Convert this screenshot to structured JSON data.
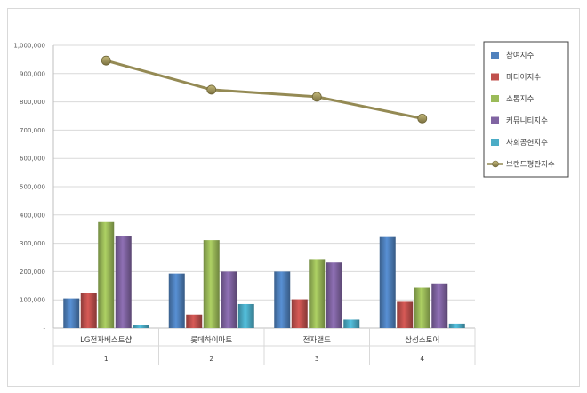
{
  "chart_data": {
    "type": "bar",
    "categories": [
      "LG전자베스트샵",
      "롯데하이마트",
      "전자랜드",
      "삼성스토어"
    ],
    "category_ids": [
      "1",
      "2",
      "3",
      "4"
    ],
    "series": [
      {
        "name": "참여지수",
        "type": "bar",
        "color": "#4f81bd",
        "values": [
          105000,
          193000,
          200000,
          325000
        ]
      },
      {
        "name": "미디어지수",
        "type": "bar",
        "color": "#c0504d",
        "values": [
          124000,
          48000,
          102000,
          93000
        ]
      },
      {
        "name": "소통지수",
        "type": "bar",
        "color": "#9bbb59",
        "values": [
          375000,
          311000,
          244000,
          143000
        ]
      },
      {
        "name": "커뮤니티지수",
        "type": "bar",
        "color": "#8064a2",
        "values": [
          327000,
          200000,
          232000,
          158000
        ]
      },
      {
        "name": "사회공헌지수",
        "type": "bar",
        "color": "#4bacc6",
        "values": [
          10000,
          85000,
          30000,
          16000
        ]
      },
      {
        "name": "브랜드평판지수",
        "type": "line",
        "color": "#948a54",
        "values": [
          946000,
          843000,
          818000,
          741000
        ]
      }
    ],
    "ylim": [
      0,
      1000000
    ],
    "yticks": [
      0,
      100000,
      200000,
      300000,
      400000,
      500000,
      600000,
      700000,
      800000,
      900000,
      1000000
    ],
    "ytick_labels": [
      "-",
      "100,000",
      "200,000",
      "300,000",
      "400,000",
      "500,000",
      "600,000",
      "700,000",
      "800,000",
      "900,000",
      "1,000,000"
    ],
    "grid": true,
    "legend_position": "top-right"
  }
}
